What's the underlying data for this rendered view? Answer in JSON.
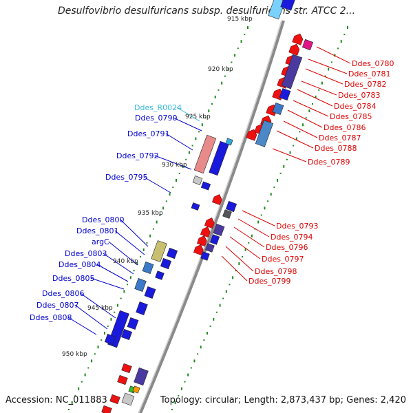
{
  "title": "Desulfovibrio desulfuricans subsp. desulfuricans str. ATCC 2...",
  "footer": {
    "accession": "Accession: NC_011883",
    "topology": "Topology: circular; Length: 2,873,437 bp; Genes: 2,420"
  },
  "colors": {
    "forward_label": "#0000cc",
    "reverse_label": "#dd0000",
    "rna_label": "#33bbdd",
    "backbone": "#888888",
    "gc_ticks": "#228b22"
  },
  "kbp_ticks": [
    "915 kbp",
    "920 kbp",
    "925 kbp",
    "930 kbp",
    "935 kbp",
    "940 kbp",
    "945 kbp",
    "950 kbp"
  ],
  "labels_left": [
    "Ddes_R0024",
    "Ddes_0790",
    "Ddes_0791",
    "Ddes_0792",
    "Ddes_0795",
    "Ddes_0800",
    "Ddes_0801",
    "argC",
    "Ddes_0803",
    "Ddes_0804",
    "Ddes_0805",
    "Ddes_0806",
    "Ddes_0807",
    "Ddes_0808"
  ],
  "labels_right": [
    "Ddes_0780",
    "Ddes_0781",
    "Ddes_0782",
    "Ddes_0783",
    "Ddes_0784",
    "Ddes_0785",
    "Ddes_0786",
    "Ddes_0787",
    "Ddes_0788",
    "Ddes_0789",
    "Ddes_0793",
    "Ddes_0794",
    "Ddes_0796",
    "Ddes_0797",
    "Ddes_0798",
    "Ddes_0799"
  ]
}
